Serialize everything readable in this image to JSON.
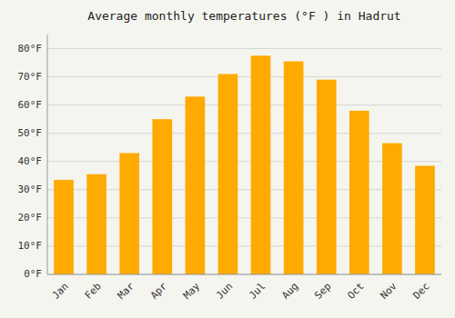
{
  "chart_data": {
    "type": "bar",
    "title": "Average monthly temperatures (°F ) in Hadrut",
    "categories": [
      "Jan",
      "Feb",
      "Mar",
      "Apr",
      "May",
      "Jun",
      "Jul",
      "Aug",
      "Sep",
      "Oct",
      "Nov",
      "Dec"
    ],
    "values": [
      33.5,
      35.5,
      43.0,
      55.0,
      63.0,
      71.0,
      77.5,
      75.5,
      69.0,
      58.0,
      46.5,
      38.5
    ],
    "color": "#FFAA00",
    "ylim": [
      0,
      85
    ],
    "yticks": [
      {
        "value": 0,
        "label": "0°F"
      },
      {
        "value": 10,
        "label": "10°F"
      },
      {
        "value": 20,
        "label": "20°F"
      },
      {
        "value": 30,
        "label": "30°F"
      },
      {
        "value": 40,
        "label": "40°F"
      },
      {
        "value": 50,
        "label": "50°F"
      },
      {
        "value": 60,
        "label": "60°F"
      },
      {
        "value": 70,
        "label": "70°F"
      },
      {
        "value": 80,
        "label": "80°F"
      }
    ],
    "grid": true
  }
}
